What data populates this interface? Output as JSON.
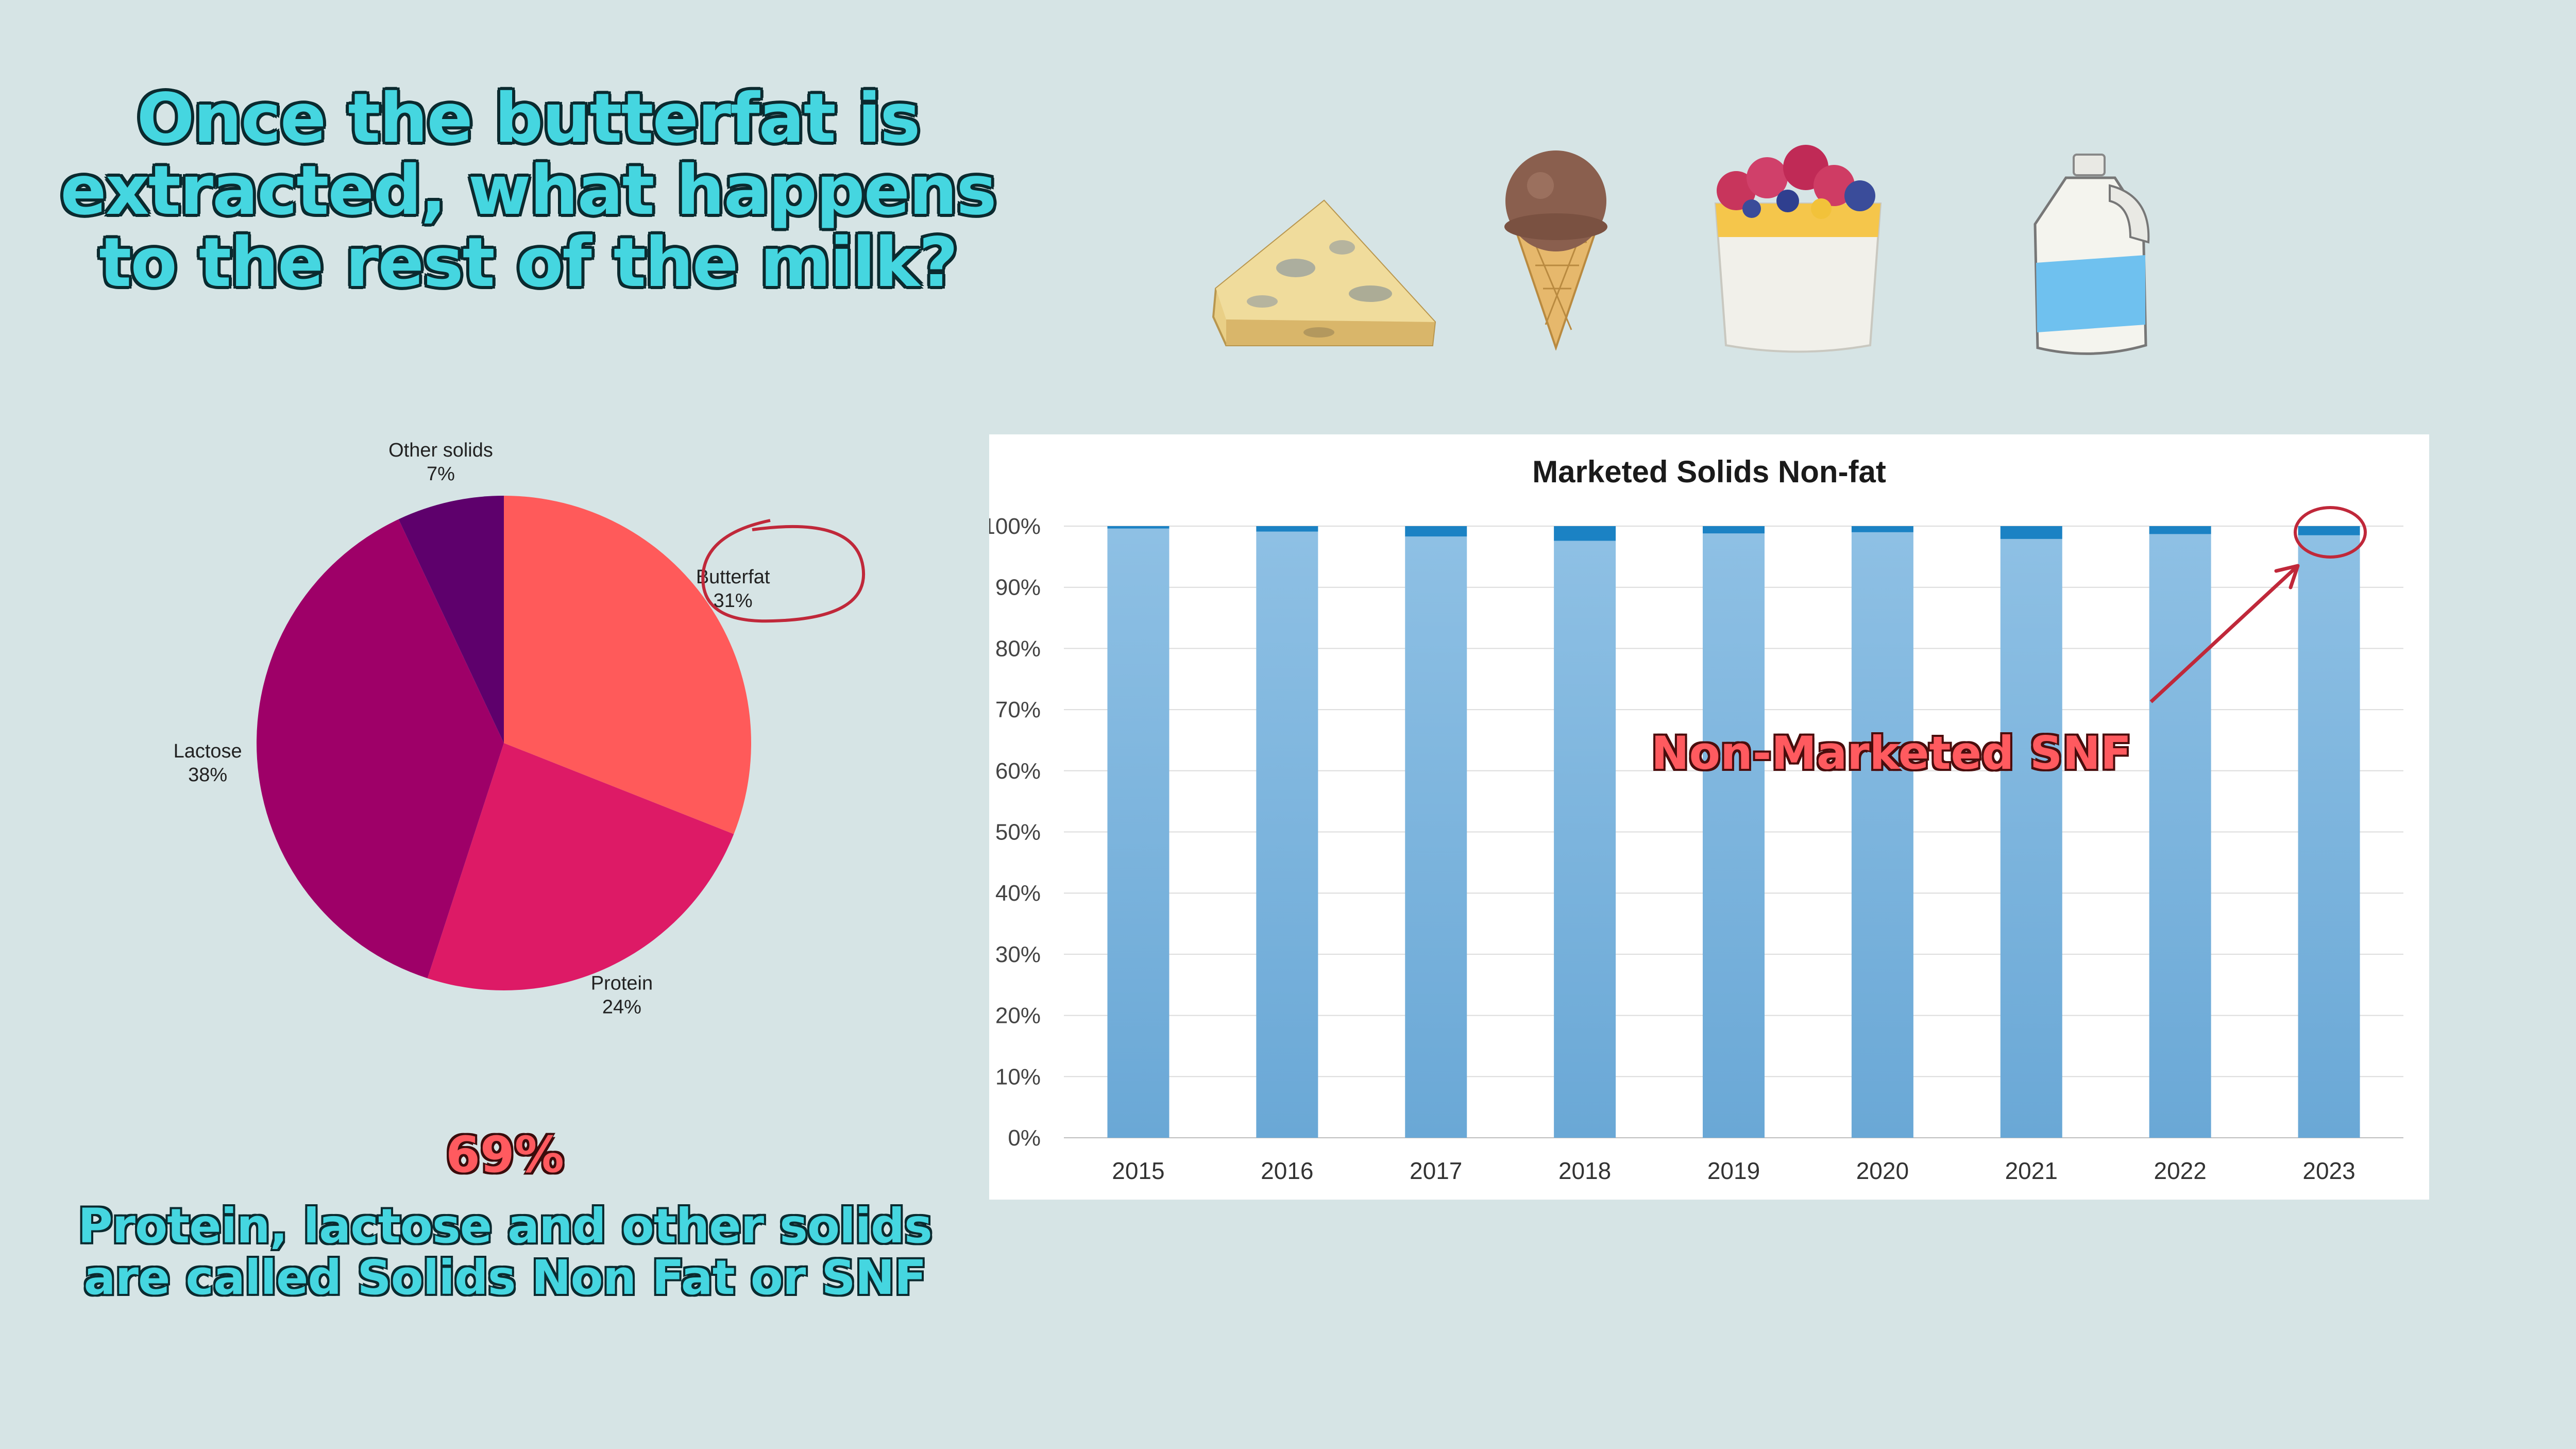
{
  "headline": {
    "lines": [
      "Once the butterfat is",
      "extracted, what happens",
      "to the rest of the milk?"
    ]
  },
  "icons": [
    "cheese-icon",
    "ice-cream-cone-icon",
    "yogurt-parfait-icon",
    "milk-jug-icon"
  ],
  "callout": {
    "percent": "69%",
    "lines": [
      "Protein, lactose and other solids",
      "are called Solids Non Fat or SNF"
    ]
  },
  "annotation": "Non-Marketed SNF",
  "colors": {
    "background": "#d6e4e5",
    "headline": "#45d6e0",
    "accent_red": "#ff5a5f",
    "annotation_line": "#c0283a",
    "butterfat": "#ff5a5a",
    "protein": "#dd1a66",
    "lactose": "#9e0068",
    "other_solids": "#5e006c",
    "marketed_bar": "#8ec0e4",
    "non_marketed_bar": "#1b82c4"
  },
  "chart_data": [
    {
      "type": "pie",
      "slices": [
        {
          "label": "Butterfat",
          "value": 31,
          "display": "31%",
          "color": "#ff5a5a"
        },
        {
          "label": "Protein",
          "value": 24,
          "display": "24%",
          "color": "#dd1a66"
        },
        {
          "label": "Lactose",
          "value": 38,
          "display": "38%",
          "color": "#9e0068"
        },
        {
          "label": "Other solids",
          "value": 7,
          "display": "7%",
          "color": "#5e006c"
        }
      ],
      "start": "12 o'clock",
      "direction": "clockwise",
      "highlighted_slice": "Butterfat"
    },
    {
      "type": "bar",
      "stacked": true,
      "title": "Marketed  Solids Non-fat",
      "categories": [
        "2015",
        "2016",
        "2017",
        "2018",
        "2019",
        "2020",
        "2021",
        "2022",
        "2023"
      ],
      "series": [
        {
          "name": "",
          "color": "#8ec0e4",
          "values": [
            99.6,
            99.1,
            98.3,
            97.6,
            98.8,
            99.0,
            97.9,
            98.7,
            98.5
          ]
        },
        {
          "name": "",
          "color": "#1b82c4",
          "values": [
            0.4,
            0.9,
            1.7,
            2.4,
            1.2,
            1.0,
            2.1,
            1.3,
            1.5
          ]
        }
      ],
      "ylim": [
        0,
        100
      ],
      "yticks": [
        "0%",
        "10%",
        "20%",
        "30%",
        "40%",
        "50%",
        "60%",
        "70%",
        "80%",
        "90%",
        "100%"
      ],
      "grid": true,
      "legend": "none",
      "highlighted_category": "2023"
    }
  ]
}
